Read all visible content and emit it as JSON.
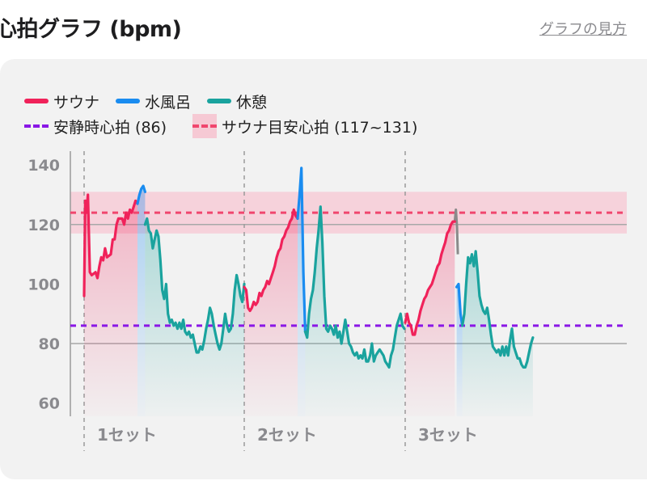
{
  "header": {
    "title": "心拍グラフ (bpm)",
    "help_link": "グラフの見方"
  },
  "legend": {
    "sauna": "サウナ",
    "water": "水風呂",
    "rest": "休憩",
    "resting_hr": "安静時心拍 (86)",
    "sauna_target": "サウナ目安心拍 (117~131)"
  },
  "colors": {
    "sauna": "#f0225a",
    "water": "#1a8cf0",
    "rest": "#1aa39e",
    "resting_hr": "#8a17e6",
    "sauna_target_line": "#f0466e",
    "sauna_target_band": "#f6c9d4"
  },
  "chart_data": {
    "type": "line",
    "ylim": [
      55,
      145
    ],
    "yticks": [
      60,
      80,
      100,
      120,
      140
    ],
    "resting_hr": 86,
    "sauna_target": [
      117,
      131
    ],
    "sauna_target_line": 124,
    "sets": [
      {
        "label": "1セット",
        "sauna": [
          [
            0,
            96
          ],
          [
            0.3,
            128
          ],
          [
            0.6,
            124
          ],
          [
            1,
            130
          ],
          [
            1.5,
            104
          ],
          [
            2,
            103
          ],
          [
            3,
            104
          ],
          [
            3.5,
            102
          ],
          [
            4,
            106
          ],
          [
            4.5,
            109
          ],
          [
            5,
            108
          ],
          [
            5.5,
            112
          ],
          [
            6,
            109
          ],
          [
            7,
            110
          ],
          [
            7.5,
            115
          ],
          [
            8,
            115
          ],
          [
            8.5,
            120
          ],
          [
            9,
            122
          ],
          [
            10,
            122
          ],
          [
            10.5,
            120
          ],
          [
            11,
            124
          ],
          [
            11.5,
            122
          ],
          [
            12,
            125
          ],
          [
            12.5,
            124
          ],
          [
            13,
            126
          ],
          [
            13.5,
            128
          ],
          [
            14,
            127
          ]
        ],
        "water": [
          [
            14,
            127
          ],
          [
            14.5,
            130
          ],
          [
            15,
            132
          ],
          [
            15.5,
            133
          ],
          [
            16,
            131
          ]
        ],
        "rest": [
          [
            16,
            120
          ],
          [
            16.5,
            122
          ],
          [
            17,
            118
          ],
          [
            17.5,
            117
          ],
          [
            18,
            112
          ],
          [
            18.5,
            115
          ],
          [
            19,
            118
          ],
          [
            19.5,
            116
          ],
          [
            20,
            108
          ],
          [
            20.5,
            98
          ],
          [
            21,
            95
          ],
          [
            21.5,
            100
          ],
          [
            22,
            90
          ],
          [
            22.5,
            87
          ],
          [
            23,
            88
          ],
          [
            23.5,
            86
          ],
          [
            24,
            87
          ],
          [
            24.5,
            85
          ],
          [
            25,
            87
          ],
          [
            25.5,
            85
          ],
          [
            26,
            88
          ],
          [
            26.5,
            84
          ],
          [
            27,
            83
          ],
          [
            27.5,
            84
          ],
          [
            28,
            82
          ],
          [
            28.5,
            83
          ],
          [
            29,
            80
          ],
          [
            29.5,
            77
          ],
          [
            30,
            77
          ],
          [
            30.5,
            79
          ],
          [
            31,
            78
          ],
          [
            31.5,
            81
          ],
          [
            32,
            85
          ],
          [
            32.5,
            88
          ],
          [
            33,
            92
          ],
          [
            33.5,
            90
          ],
          [
            34,
            86
          ],
          [
            34.5,
            83
          ],
          [
            35,
            80
          ],
          [
            35.5,
            78
          ],
          [
            36,
            80
          ],
          [
            36.5,
            85
          ],
          [
            37,
            90
          ],
          [
            37.5,
            86
          ],
          [
            38,
            84
          ],
          [
            38.5,
            85
          ],
          [
            39,
            90
          ],
          [
            39.5,
            98
          ],
          [
            40,
            103
          ],
          [
            40.5,
            100
          ],
          [
            41,
            96
          ],
          [
            41.5,
            94
          ],
          [
            42,
            100
          ]
        ]
      },
      {
        "label": "2セット",
        "sauna": [
          [
            0,
            99
          ],
          [
            0.5,
            98
          ],
          [
            1,
            92
          ],
          [
            1.5,
            91
          ],
          [
            2,
            92
          ],
          [
            2.5,
            94
          ],
          [
            3,
            93
          ],
          [
            3.5,
            94
          ],
          [
            4,
            97
          ],
          [
            4.5,
            96
          ],
          [
            5,
            98
          ],
          [
            5.5,
            99
          ],
          [
            6,
            101
          ],
          [
            6.5,
            100
          ],
          [
            7,
            102
          ],
          [
            7.5,
            104
          ],
          [
            8,
            106
          ],
          [
            8.5,
            109
          ],
          [
            9,
            111
          ],
          [
            9.5,
            112
          ],
          [
            10,
            115
          ],
          [
            10.5,
            116
          ],
          [
            11,
            118
          ],
          [
            11.5,
            119
          ],
          [
            12,
            121
          ],
          [
            12.5,
            122
          ],
          [
            13,
            125
          ],
          [
            13.5,
            123
          ],
          [
            14,
            122
          ]
        ],
        "water": [
          [
            14,
            122
          ],
          [
            14.5,
            130
          ],
          [
            15,
            139
          ],
          [
            15.5,
            104
          ],
          [
            16,
            84
          ]
        ],
        "rest": [
          [
            16,
            84
          ],
          [
            16.5,
            82
          ],
          [
            17,
            90
          ],
          [
            17.5,
            95
          ],
          [
            18,
            98
          ],
          [
            18.5,
            104
          ],
          [
            19,
            112
          ],
          [
            19.5,
            118
          ],
          [
            20,
            126
          ],
          [
            20.5,
            114
          ],
          [
            21,
            96
          ],
          [
            21.5,
            85
          ],
          [
            22,
            84
          ],
          [
            22.5,
            86
          ],
          [
            23,
            85
          ],
          [
            23.5,
            83
          ],
          [
            24,
            86
          ],
          [
            24.5,
            82
          ],
          [
            25,
            84
          ],
          [
            25.5,
            80
          ],
          [
            26,
            84
          ],
          [
            26.5,
            88
          ],
          [
            27,
            84
          ],
          [
            27.5,
            80
          ],
          [
            28,
            79
          ],
          [
            28.5,
            77
          ],
          [
            29,
            76
          ],
          [
            29.5,
            77
          ],
          [
            30,
            75
          ],
          [
            30.5,
            76
          ],
          [
            31,
            75
          ],
          [
            31.5,
            78
          ],
          [
            32,
            74
          ],
          [
            32.5,
            74
          ],
          [
            33,
            76
          ],
          [
            33.5,
            80
          ],
          [
            34,
            74
          ],
          [
            34.5,
            76
          ],
          [
            35,
            77
          ],
          [
            35.5,
            78
          ],
          [
            36,
            77
          ],
          [
            36.5,
            76
          ],
          [
            37,
            74
          ],
          [
            37.5,
            73
          ],
          [
            38,
            72
          ],
          [
            38.5,
            76
          ],
          [
            39,
            78
          ],
          [
            39.5,
            82
          ],
          [
            40,
            86
          ],
          [
            40.5,
            88
          ],
          [
            41,
            90
          ],
          [
            41.5,
            86
          ],
          [
            42,
            85
          ]
        ]
      },
      {
        "label": "3セット",
        "sauna": [
          [
            0,
            87
          ],
          [
            0.5,
            90
          ],
          [
            1,
            87
          ],
          [
            1.5,
            86
          ],
          [
            2,
            83
          ],
          [
            2.5,
            83
          ],
          [
            3,
            86
          ],
          [
            3.5,
            88
          ],
          [
            4,
            91
          ],
          [
            4.5,
            93
          ],
          [
            5,
            95
          ],
          [
            5.5,
            96
          ],
          [
            6,
            98
          ],
          [
            6.5,
            99
          ],
          [
            7,
            100
          ],
          [
            7.5,
            102
          ],
          [
            8,
            104
          ],
          [
            8.5,
            106
          ],
          [
            9,
            107
          ],
          [
            9.5,
            110
          ],
          [
            10,
            112
          ],
          [
            10.5,
            114
          ],
          [
            11,
            117
          ],
          [
            11.5,
            118
          ],
          [
            12,
            120
          ],
          [
            12.5,
            121
          ],
          [
            13,
            121
          ]
        ],
        "water": [
          [
            13.5,
            99
          ],
          [
            14,
            100
          ],
          [
            14.5,
            90
          ],
          [
            15,
            86
          ]
        ],
        "rest": [
          [
            15,
            86
          ],
          [
            15.5,
            90
          ],
          [
            16,
            100
          ],
          [
            16.5,
            109
          ],
          [
            17,
            107
          ],
          [
            17.5,
            110
          ],
          [
            18,
            106
          ],
          [
            18.5,
            111
          ],
          [
            19,
            104
          ],
          [
            19.5,
            96
          ],
          [
            20,
            93
          ],
          [
            20.5,
            91
          ],
          [
            21,
            90
          ],
          [
            21.5,
            92
          ],
          [
            22,
            88
          ],
          [
            22.5,
            83
          ],
          [
            23,
            79
          ],
          [
            23.5,
            78
          ],
          [
            24,
            77
          ],
          [
            24.5,
            78
          ],
          [
            25,
            76
          ],
          [
            25.5,
            79
          ],
          [
            26,
            76
          ],
          [
            26.5,
            79
          ],
          [
            27,
            76
          ],
          [
            27.5,
            81
          ],
          [
            28,
            85
          ],
          [
            28.5,
            79
          ],
          [
            29,
            77
          ],
          [
            29.5,
            75
          ],
          [
            30,
            75
          ],
          [
            30.5,
            73
          ],
          [
            31,
            72
          ],
          [
            31.5,
            72
          ],
          [
            32,
            74
          ],
          [
            32.5,
            77
          ],
          [
            33,
            80
          ],
          [
            33.5,
            82
          ]
        ]
      }
    ],
    "transitions": [
      {
        "set": 0,
        "points": [
          [
            13,
            121
          ],
          [
            13.5,
            125
          ],
          [
            14,
            123
          ],
          [
            14.3,
            115
          ],
          [
            14.6,
            106
          ]
        ],
        "color": "#8a8a8a"
      }
    ]
  }
}
